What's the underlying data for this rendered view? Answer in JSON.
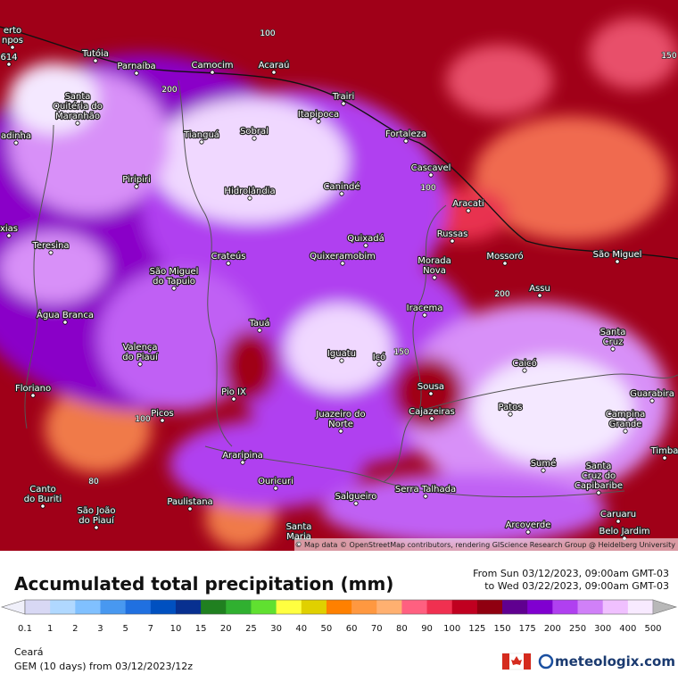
{
  "map": {
    "attribution": "© Map data © OpenStreetMap contributors, rendering GIScience Research Group @ Heidelberg University",
    "cities": [
      [
        "erto",
        "npos"
      ],
      [
        "614"
      ],
      [
        "Tutóia"
      ],
      [
        "Parnaíba"
      ],
      [
        "Camocim"
      ],
      [
        "Acaraú"
      ],
      [
        "Trairi"
      ],
      [
        "Itapipoca"
      ],
      [
        "Santa",
        "Quitéria do",
        "Maranhão"
      ],
      [
        "adinha"
      ],
      [
        "Tianguá"
      ],
      [
        "Sobral"
      ],
      [
        "Fortaleza"
      ],
      [
        "Cascavel"
      ],
      [
        "Piripiri"
      ],
      [
        "Hidrolândia"
      ],
      [
        "Canindé"
      ],
      [
        "Aracati"
      ],
      [
        "xias"
      ],
      [
        "Teresina"
      ],
      [
        "Quixadá"
      ],
      [
        "Russas"
      ],
      [
        "Crateús"
      ],
      [
        "Quixeramobim"
      ],
      [
        "Morada",
        "Nova"
      ],
      [
        "Mossoró"
      ],
      [
        "São Miguel"
      ],
      [
        "São Miguel",
        "do Tapuio"
      ],
      [
        "Assu"
      ],
      [
        "Água Branca"
      ],
      [
        "Iracema"
      ],
      [
        "Tauá"
      ],
      [
        "Santa",
        "Cruz"
      ],
      [
        "Valença",
        "do Piauí"
      ],
      [
        "Iguatu"
      ],
      [
        "Icó"
      ],
      [
        "Caicó"
      ],
      [
        "Floriano"
      ],
      [
        "Sousa"
      ],
      [
        "Pio IX"
      ],
      [
        "Cajazeiras"
      ],
      [
        "Guarabira"
      ],
      [
        "Patos"
      ],
      [
        "Juazeiro do",
        "Norte"
      ],
      [
        "Picos"
      ],
      [
        "Campina",
        "Grande"
      ],
      [
        "Timba"
      ],
      [
        "Araripina"
      ],
      [
        "Sumé"
      ],
      [
        "Santa",
        "Cruz do",
        "Capibaribe"
      ],
      [
        "Canto",
        "do Buriti"
      ],
      [
        "Ouricuri"
      ],
      [
        "Serra Talhada"
      ],
      [
        "Salgueiro"
      ],
      [
        "Paulistana"
      ],
      [
        "São João",
        "do Piauí"
      ],
      [
        "Caruaru"
      ],
      [
        "Arcoverde"
      ],
      [
        "Santa",
        "Maria"
      ],
      [
        "Belo Jardim"
      ]
    ],
    "contours": [
      "100",
      "100",
      "80",
      "150",
      "200",
      "100",
      "200",
      "150"
    ]
  },
  "legend": {
    "title": "Accumulated total precipitation (mm)",
    "period_from": "From Sun 03/12/2023, 09:00am GMT-03",
    "period_to": "to Wed 03/22/2023, 09:00am GMT-03",
    "labels": [
      "0.1",
      "1",
      "2",
      "3",
      "5",
      "7",
      "10",
      "15",
      "20",
      "25",
      "30",
      "40",
      "50",
      "60",
      "70",
      "80",
      "90",
      "100",
      "125",
      "150",
      "175",
      "200",
      "250",
      "300",
      "400",
      "500"
    ],
    "colors": [
      "#f0f0fa",
      "#d8d8f4",
      "#b0d8ff",
      "#80c0ff",
      "#4898f0",
      "#2070e0",
      "#0050c0",
      "#083090",
      "#208020",
      "#30b030",
      "#60e030",
      "#ffff40",
      "#e0d000",
      "#ff8000",
      "#ff9840",
      "#ffb070",
      "#ff6080",
      "#f03050",
      "#c00020",
      "#900010",
      "#600090",
      "#8000d0",
      "#b040f0",
      "#d080f8",
      "#f0c0ff",
      "#f8eaff",
      "#b8b8b8"
    ]
  },
  "footer": {
    "region": "Ceará",
    "model": "GEM (10 days) from 03/12/2023/12z",
    "brand": "meteologix.com"
  }
}
